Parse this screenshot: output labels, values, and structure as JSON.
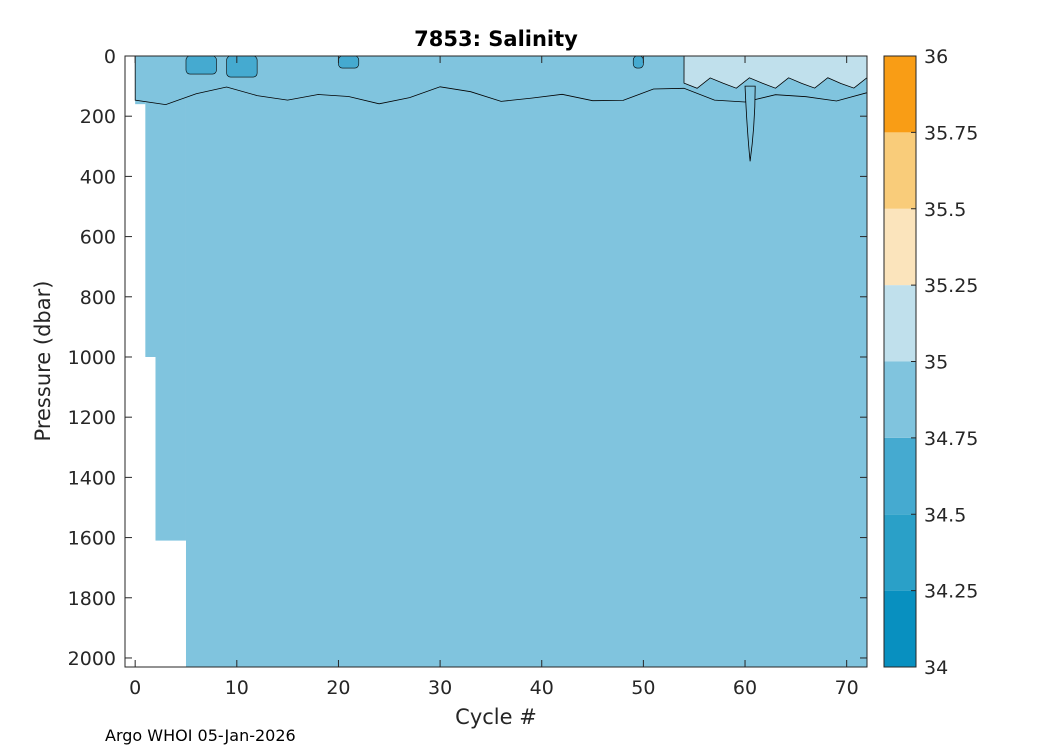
{
  "chart_data": {
    "type": "heatmap",
    "subtype": "filled-contour",
    "title": "7853:  Salinity",
    "xlabel": "Cycle #",
    "ylabel": "Pressure (dbar)",
    "footer": "Argo WHOI 05-Jan-2026",
    "xlim": [
      -1,
      72
    ],
    "ylim": [
      2030,
      0
    ],
    "y_reversed": true,
    "xticks": [
      0,
      10,
      20,
      30,
      40,
      50,
      60,
      70
    ],
    "yticks": [
      0,
      200,
      400,
      600,
      800,
      1000,
      1200,
      1400,
      1600,
      1800,
      2000
    ],
    "colorbar": {
      "range": [
        34,
        36
      ],
      "ticks": [
        "34",
        "34.25",
        "34.5",
        "34.75",
        "35",
        "35.25",
        "35.5",
        "35.75",
        "36"
      ],
      "levels": [
        {
          "min": 34.0,
          "max": 34.25,
          "color": "#0890c0"
        },
        {
          "min": 34.25,
          "max": 34.5,
          "color": "#2aa0c8"
        },
        {
          "min": 34.5,
          "max": 34.75,
          "color": "#45aad0"
        },
        {
          "min": 34.75,
          "max": 35.0,
          "color": "#80c4de"
        },
        {
          "min": 35.0,
          "max": 35.25,
          "color": "#c0e0ec"
        },
        {
          "min": 35.25,
          "max": 35.5,
          "color": "#fbe4bc"
        },
        {
          "min": 35.5,
          "max": 35.75,
          "color": "#f9cc7a"
        },
        {
          "min": 35.75,
          "max": 36.0,
          "color": "#f9b040"
        }
      ],
      "top_color": "#f99d15"
    },
    "background_level": 34.8,
    "regions": [
      {
        "name": "surface-fresh-layer",
        "level": 34.9,
        "cycles": [
          0,
          72
        ],
        "pressure": [
          0,
          180
        ]
      },
      {
        "name": "surface-salty-patch",
        "level": 35.1,
        "cycles": [
          54,
          72
        ],
        "pressure": [
          0,
          110
        ]
      },
      {
        "name": "low-salinity-lens",
        "level": 34.6,
        "cycles": [
          9,
          12
        ],
        "pressure": [
          0,
          70
        ]
      },
      {
        "name": "low-salinity-lens",
        "level": 34.6,
        "cycles": [
          5,
          8
        ],
        "pressure": [
          0,
          60
        ]
      },
      {
        "name": "low-salinity-lens",
        "level": 34.6,
        "cycles": [
          20,
          22
        ],
        "pressure": [
          0,
          40
        ]
      },
      {
        "name": "low-salinity-lens",
        "level": 34.6,
        "cycles": [
          49,
          50
        ],
        "pressure": [
          0,
          40
        ]
      },
      {
        "name": "deep-intrusion",
        "level": 34.9,
        "cycles": [
          60,
          61
        ],
        "pressure": [
          100,
          350
        ]
      }
    ],
    "profile_depths": [
      {
        "cycles": [
          0,
          1
        ],
        "max_pressure": 160
      },
      {
        "cycles": [
          1,
          2
        ],
        "max_pressure": 1000
      },
      {
        "cycles": [
          2,
          5
        ],
        "max_pressure": 1610
      },
      {
        "cycles": [
          5,
          72
        ],
        "max_pressure": 2030
      }
    ]
  }
}
